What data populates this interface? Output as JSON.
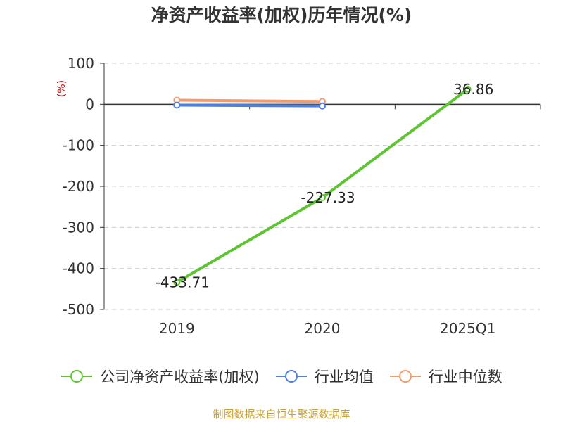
{
  "chart_data": {
    "type": "line",
    "title": "净资产收益率(加权)历年情况(%)",
    "ylabel": "(%)",
    "xlabel": "",
    "categories": [
      "2019",
      "2020",
      "2025Q1"
    ],
    "ylim": [
      -500,
      100
    ],
    "yticks": [
      100,
      0,
      -100,
      -200,
      -300,
      -400,
      -500
    ],
    "ytick_labels": [
      "100",
      "0",
      "-100",
      "-200",
      "-300",
      "-400",
      "-500"
    ],
    "grid": true,
    "legend_position": "bottom",
    "series": [
      {
        "name": "公司净资产收益率(加权)",
        "color": "#5cc531",
        "values": [
          -433.71,
          -227.33,
          36.86
        ],
        "labels": [
          "-433.71",
          "-227.33",
          "36.86"
        ]
      },
      {
        "name": "行业均值",
        "color": "#4f7fde",
        "values": [
          -2,
          -4,
          null
        ],
        "labels": [
          null,
          null,
          null
        ]
      },
      {
        "name": "行业中位数",
        "color": "#f49a6c",
        "values": [
          10,
          7,
          null
        ],
        "labels": [
          null,
          null,
          null
        ]
      }
    ]
  },
  "footer": {
    "source": "制图数据来自恒生聚源数据库"
  }
}
